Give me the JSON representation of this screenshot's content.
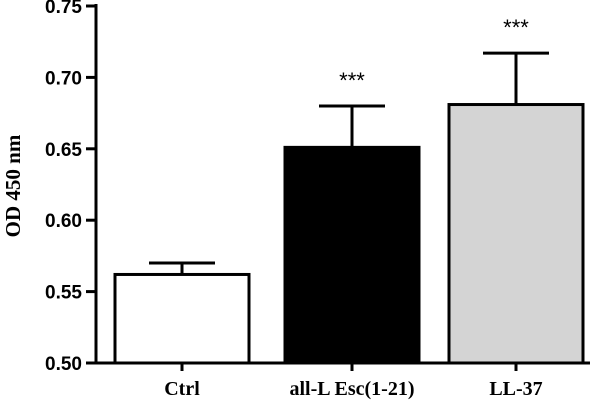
{
  "chart_data": {
    "type": "bar",
    "title": "",
    "xlabel": "",
    "ylabel": "OD 450 nm",
    "ylim": [
      0.5,
      0.75
    ],
    "yticks": [
      "0.50",
      "0.55",
      "0.60",
      "0.65",
      "0.70",
      "0.75"
    ],
    "categories": [
      "Ctrl",
      "all-L Esc(1-21)",
      "LL-37"
    ],
    "values": [
      0.562,
      0.651,
      0.681
    ],
    "errors": [
      0.008,
      0.029,
      0.036
    ],
    "significance": [
      "",
      "***",
      "***"
    ],
    "bar_colors": [
      "#ffffff",
      "#000000",
      "#d4d4d4"
    ],
    "grid": false,
    "legend": "none"
  }
}
